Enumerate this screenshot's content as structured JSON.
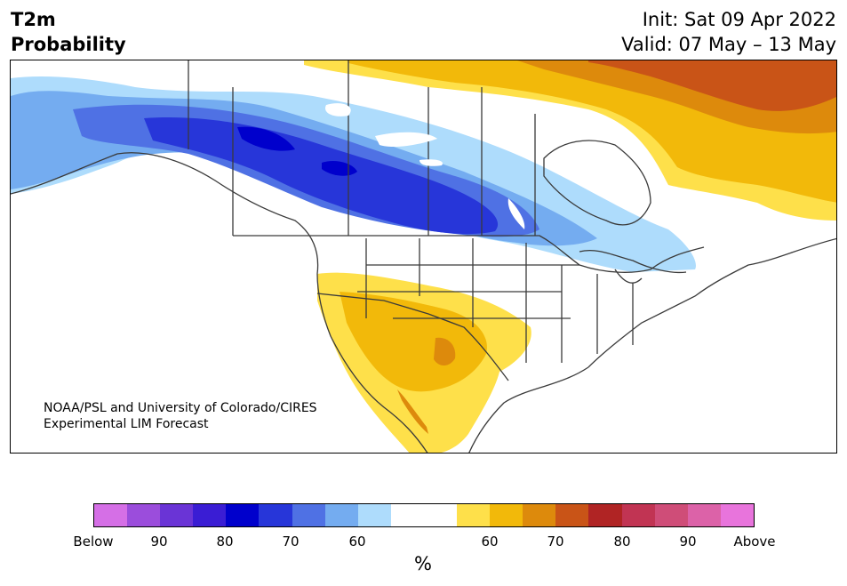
{
  "title": {
    "left": "T2m\nProbability",
    "left_line1": "T2m",
    "left_line2": "Probability",
    "init": "Init: Sat 09 Apr 2022",
    "valid": "Valid: 07 May – 13 May"
  },
  "credit": {
    "line1": "NOAA/PSL and University of Colorado/CIRES",
    "line2": "Experimental LIM Forecast"
  },
  "colorbar": {
    "colors": [
      "#d56fe6",
      "#9b4ddc",
      "#6a34d6",
      "#3a1dd4",
      "#0000cc",
      "#2736d9",
      "#4f71e4",
      "#74acf0",
      "#aedcfc",
      "#ffffff",
      "#ffffff",
      "#fee04a",
      "#f2b90a",
      "#dd8a0c",
      "#c95417",
      "#b02424",
      "#c13453",
      "#cf4d78",
      "#dc62a8",
      "#e874dc"
    ],
    "labels": [
      "Below",
      "90",
      "80",
      "70",
      "60",
      "60",
      "70",
      "80",
      "90",
      "Above"
    ],
    "unit": "%"
  },
  "map": {
    "colors": {
      "blue_light": "#aedcfc",
      "blue_mid": "#74acf0",
      "blue_mid2": "#4f71e4",
      "blue_dark": "#2736d9",
      "blue_darkest": "#0000cc",
      "yellow": "#fee04a",
      "gold": "#f2b90a",
      "orange": "#dd8a0c",
      "brown": "#c95417"
    }
  }
}
